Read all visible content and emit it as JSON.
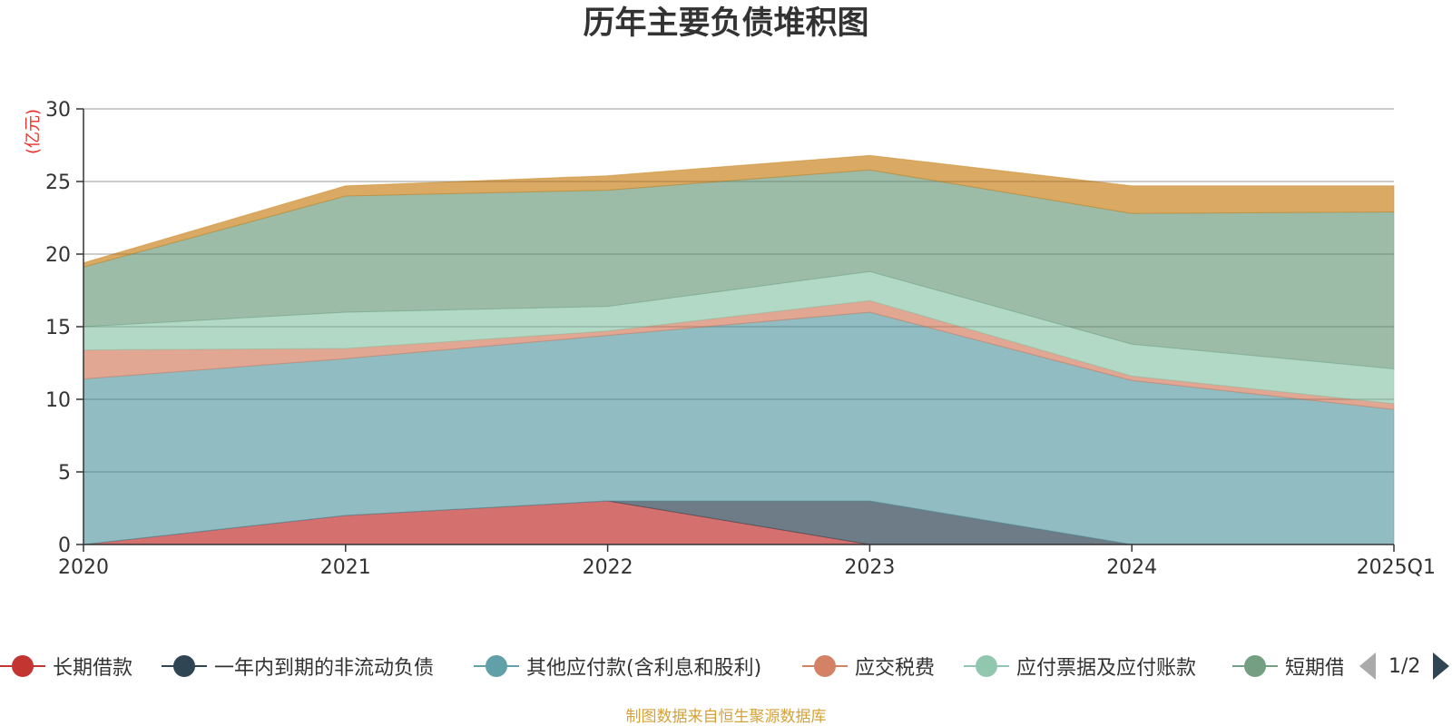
{
  "chart_data": {
    "type": "area",
    "stacked": true,
    "title": "历年主要负债堆积图",
    "ylabel": "(亿元)",
    "categories": [
      "2020",
      "2021",
      "2022",
      "2023",
      "2024",
      "2025Q1"
    ],
    "ylim": [
      0,
      30
    ],
    "yticks": [
      0,
      5,
      10,
      15,
      20,
      25,
      30
    ],
    "grid": true,
    "legend_position": "bottom",
    "series": [
      {
        "name": "长期借款",
        "color": "#c23531",
        "values": [
          0,
          2,
          3,
          0,
          0,
          0
        ]
      },
      {
        "name": "一年内到期的非流动负债",
        "color": "#2f4554",
        "values": [
          0,
          0,
          0,
          3,
          0,
          0
        ]
      },
      {
        "name": "其他应付款(含利息和股利)",
        "color": "#61a0a8",
        "values": [
          11.4,
          10.8,
          11.4,
          13,
          11.3,
          9.3
        ]
      },
      {
        "name": "应交税费",
        "color": "#d48265",
        "values": [
          2.0,
          0.7,
          0.3,
          0.8,
          0.3,
          0.4
        ]
      },
      {
        "name": "应付票据及应付账款",
        "color": "#91c7ae",
        "values": [
          1.6,
          2.5,
          1.7,
          2.0,
          2.2,
          2.4
        ]
      },
      {
        "name": "短期借款",
        "color": "#749f83",
        "values": [
          4.1,
          8.0,
          8.0,
          7.0,
          9.0,
          10.8
        ]
      },
      {
        "name": "",
        "color": "#ca8622",
        "values": [
          0.3,
          0.7,
          1.0,
          1.0,
          1.9,
          1.8
        ]
      }
    ]
  },
  "legend": {
    "items": [
      "长期借款",
      "一年内到期的非流动负债",
      "其他应付款(含利息和股利)",
      "应交税费",
      "应付票据及应付账款",
      "短期借款"
    ],
    "page": "1/2"
  },
  "source_note": "制图数据来自恒生聚源数据库"
}
